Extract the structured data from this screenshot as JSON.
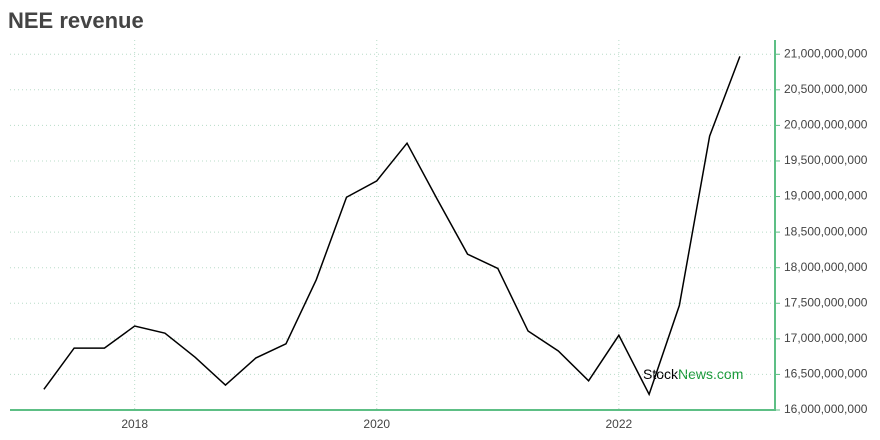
{
  "chart_data": {
    "type": "line",
    "title": "NEE revenue",
    "x": [
      2017.25,
      2017.5,
      2017.75,
      2018.0,
      2018.25,
      2018.5,
      2018.75,
      2019.0,
      2019.25,
      2019.5,
      2019.75,
      2020.0,
      2020.25,
      2020.5,
      2020.75,
      2021.0,
      2021.25,
      2021.5,
      2021.75,
      2022.0,
      2022.25,
      2022.5,
      2022.75,
      2023.0
    ],
    "values": [
      16290000000,
      16870000000,
      16870000000,
      17180000000,
      17080000000,
      16740000000,
      16350000000,
      16730000000,
      16930000000,
      17830000000,
      18990000000,
      19220000000,
      19750000000,
      18960000000,
      18190000000,
      17990000000,
      17110000000,
      16830000000,
      16410000000,
      17050000000,
      16220000000,
      17470000000,
      19850000000,
      20970000000
    ],
    "color": "#000000",
    "xlim": [
      2016.97,
      2023.29
    ],
    "xticks": [
      2018,
      2020,
      2022
    ],
    "ylim": [
      16000000000,
      21200000000
    ],
    "yticks": [
      {
        "value": 16000000000,
        "label": "16,000,000,000"
      },
      {
        "value": 16500000000,
        "label": "16,500,000,000"
      },
      {
        "value": 17000000000,
        "label": "17,000,000,000"
      },
      {
        "value": 17500000000,
        "label": "17,500,000,000"
      },
      {
        "value": 18000000000,
        "label": "18,000,000,000"
      },
      {
        "value": 18500000000,
        "label": "18,500,000,000"
      },
      {
        "value": 19000000000,
        "label": "19,000,000,000"
      },
      {
        "value": 19500000000,
        "label": "19,500,000,000"
      },
      {
        "value": 20000000000,
        "label": "20,000,000,000"
      },
      {
        "value": 20500000000,
        "label": "20,500,000,000"
      },
      {
        "value": 21000000000,
        "label": "21,000,000,000"
      }
    ],
    "grid": true,
    "axis_color": "#5dbf85",
    "watermark": [
      "Stock",
      "News.com"
    ]
  }
}
